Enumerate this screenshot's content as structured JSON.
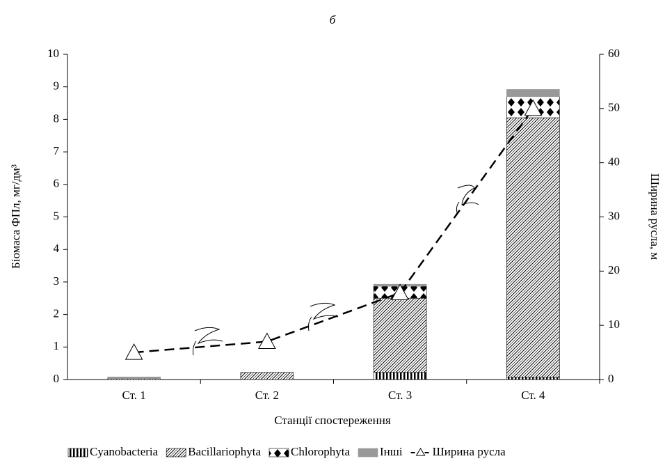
{
  "chart_data": {
    "type": "bar",
    "title": "б",
    "x_label": "Станції спостереження",
    "y_label": "Біомаса ФПл, мг/дм³",
    "y2_label": "Ширина русла, м",
    "categories": [
      "Ст. 1",
      "Ст. 2",
      "Ст. 3",
      "Ст. 4"
    ],
    "stacked": true,
    "series": [
      {
        "name": "Cyanobacteria",
        "color": "#000000",
        "values": [
          0,
          0,
          0.22,
          0.07
        ]
      },
      {
        "name": "Bacillariophyta",
        "color": "#000000",
        "values": [
          0.03,
          0.22,
          2.28,
          7.98
        ]
      },
      {
        "name": "Chlorophyta",
        "color": "#000000",
        "values": [
          0,
          0,
          0.37,
          0.65
        ]
      },
      {
        "name": "Інші",
        "color": "#999999",
        "values": [
          0.05,
          0,
          0.06,
          0.22
        ]
      },
      {
        "name": "Ширина русла",
        "type": "line",
        "axis": "y2",
        "color": "#000000",
        "values": [
          5,
          7,
          16,
          50
        ]
      }
    ],
    "ylim": [
      0,
      10
    ],
    "yticks": [
      0,
      1,
      2,
      3,
      4,
      5,
      6,
      7,
      8,
      9,
      10
    ],
    "y2lim": [
      0,
      60
    ],
    "y2ticks": [
      0,
      10,
      20,
      30,
      40,
      50,
      60
    ],
    "legend": "bottom"
  }
}
